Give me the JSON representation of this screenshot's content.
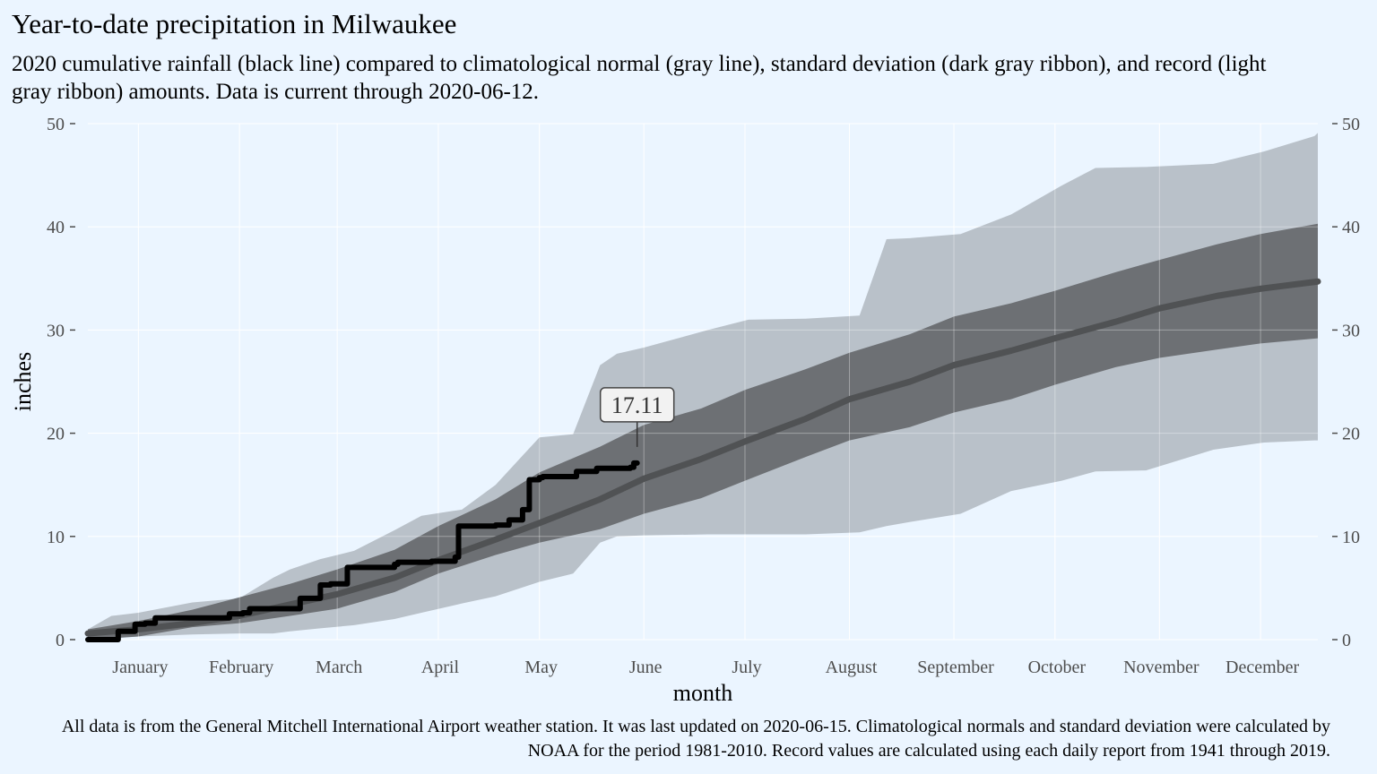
{
  "title": "Year-to-date precipitation in Milwaukee",
  "subtitle": "2020 cumulative rainfall (black line) compared to climatological normal (gray line), standard deviation (dark gray ribbon), and record (light gray ribbon) amounts. Data is current through 2020-06-12.",
  "caption": "All data is from the General Mitchell International Airport weather station. It was last updated on 2020-06-15. Climatological normals and standard deviation were calculated by NOAA for the period 1981-2010. Record values are calculated using each daily report from 1941 through 2019.",
  "colors": {
    "background": "#ebf5ff",
    "record_ribbon": "#b9c1c9",
    "sd_ribbon": "#6d7074",
    "normal_line": "#505254",
    "current_line": "#000000",
    "grid": "#ffffff"
  },
  "chart_data": {
    "type": "line",
    "title": "Year-to-date precipitation in Milwaukee",
    "xlabel": "month",
    "ylabel": "inches",
    "x_unit": "day of year",
    "xlim": [
      1,
      366
    ],
    "ylim": [
      0,
      50
    ],
    "y_ticks": [
      0,
      10,
      20,
      30,
      40,
      50
    ],
    "secondary_y_axis": true,
    "grid": true,
    "months": [
      {
        "label": "January",
        "mid_day": 16
      },
      {
        "label": "February",
        "mid_day": 46
      },
      {
        "label": "March",
        "mid_day": 75
      },
      {
        "label": "April",
        "mid_day": 105
      },
      {
        "label": "May",
        "mid_day": 135
      },
      {
        "label": "June",
        "mid_day": 166
      },
      {
        "label": "July",
        "mid_day": 196
      },
      {
        "label": "August",
        "mid_day": 227
      },
      {
        "label": "September",
        "mid_day": 258
      },
      {
        "label": "October",
        "mid_day": 288
      },
      {
        "label": "November",
        "mid_day": 319
      },
      {
        "label": "December",
        "mid_day": 349
      }
    ],
    "month_boundaries": [
      1,
      32,
      61,
      92,
      122,
      153,
      183,
      214,
      245,
      275,
      306,
      336,
      366
    ],
    "record_ribbon": {
      "x": [
        1,
        8,
        16,
        32,
        46,
        56,
        61,
        70,
        80,
        92,
        100,
        112,
        122,
        135,
        145,
        153,
        158,
        166,
        185,
        197,
        214,
        230,
        238,
        245,
        260,
        275,
        290,
        300,
        315,
        335,
        350,
        365,
        366
      ],
      "low": [
        0.0,
        0.1,
        0.3,
        0.5,
        0.6,
        0.6,
        0.8,
        1.1,
        1.4,
        2.0,
        2.6,
        3.5,
        4.2,
        5.6,
        6.4,
        9.4,
        10.0,
        10.1,
        10.2,
        10.2,
        10.2,
        10.4,
        11.0,
        11.4,
        12.2,
        14.4,
        15.4,
        16.3,
        16.4,
        18.4,
        19.1,
        19.3,
        19.3
      ],
      "high": [
        1.0,
        2.3,
        2.6,
        3.6,
        4.0,
        6.0,
        6.8,
        7.8,
        8.6,
        10.6,
        12.0,
        12.6,
        15.0,
        19.6,
        19.9,
        26.6,
        27.7,
        28.3,
        30.0,
        31.0,
        31.1,
        31.4,
        38.8,
        38.9,
        39.3,
        41.2,
        44.0,
        45.7,
        45.8,
        46.1,
        47.3,
        48.8,
        49.1
      ]
    },
    "sd_ribbon": {
      "x": [
        1,
        16,
        32,
        46,
        61,
        75,
        92,
        105,
        122,
        135,
        153,
        166,
        183,
        196,
        214,
        227,
        245,
        258,
        275,
        288,
        306,
        319,
        336,
        349,
        366
      ],
      "low": [
        0.0,
        0.3,
        1.2,
        1.6,
        2.3,
        3.0,
        4.6,
        6.4,
        8.2,
        9.4,
        10.7,
        12.2,
        13.7,
        15.4,
        17.7,
        19.3,
        20.6,
        22.0,
        23.3,
        24.7,
        26.4,
        27.3,
        28.1,
        28.7,
        29.2
      ],
      "high": [
        1.0,
        1.8,
        2.9,
        4.1,
        5.4,
        6.8,
        8.7,
        11.0,
        13.6,
        16.2,
        18.7,
        20.8,
        22.4,
        24.2,
        26.2,
        27.8,
        29.6,
        31.3,
        32.6,
        33.8,
        35.6,
        36.8,
        38.3,
        39.3,
        40.3
      ]
    },
    "normal_line": {
      "x": [
        1,
        16,
        32,
        46,
        61,
        75,
        92,
        105,
        122,
        135,
        153,
        166,
        183,
        196,
        214,
        227,
        245,
        258,
        275,
        288,
        306,
        319,
        336,
        349,
        366
      ],
      "y": [
        0.6,
        1.0,
        1.6,
        2.3,
        3.4,
        4.4,
        6.0,
        7.7,
        9.7,
        11.3,
        13.6,
        15.6,
        17.5,
        19.2,
        21.4,
        23.3,
        25.0,
        26.6,
        28.0,
        29.2,
        30.8,
        32.1,
        33.3,
        34.0,
        34.7
      ]
    },
    "current_2020": {
      "x": [
        1,
        8,
        10,
        13,
        15,
        18,
        21,
        30,
        31,
        41,
        43,
        47,
        49,
        53,
        58,
        63,
        64,
        69,
        70,
        73,
        75,
        78,
        80,
        81,
        86,
        92,
        93,
        98,
        103,
        110,
        111,
        115,
        116,
        122,
        126,
        130,
        132,
        135,
        136,
        145,
        146,
        151,
        152,
        158,
        162,
        163,
        164
      ],
      "y": [
        0.0,
        0.0,
        0.8,
        0.8,
        1.5,
        1.6,
        2.1,
        2.1,
        2.1,
        2.1,
        2.5,
        2.6,
        3.0,
        3.0,
        3.0,
        3.0,
        4.0,
        4.0,
        5.3,
        5.4,
        5.4,
        7.0,
        7.0,
        7.0,
        7.0,
        7.3,
        7.5,
        7.5,
        7.6,
        8.0,
        11.0,
        11.0,
        11.0,
        11.1,
        11.6,
        12.6,
        15.5,
        15.7,
        15.8,
        15.8,
        16.3,
        16.3,
        16.6,
        16.6,
        16.7,
        17.11,
        17.11
      ]
    },
    "annotation": {
      "label": "17.11",
      "x": 164,
      "y": 17.11
    }
  }
}
